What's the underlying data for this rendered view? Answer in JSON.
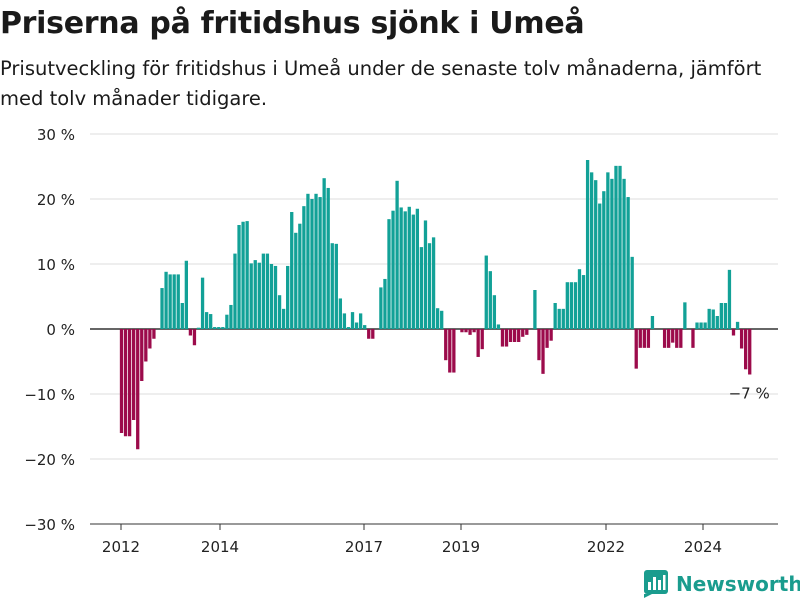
{
  "title": "Priserna på fritidshus sjönk i Umeå",
  "subtitle": "Prisutveckling för fritidshus i Umeå under de senaste tolv månaderna, jämfört med tolv månader tidigare.",
  "brand": {
    "name": "Newsworthy",
    "icon": "newsworthy-bar-chart-logo-icon"
  },
  "colors": {
    "positive": "#12a197",
    "negative": "#9c0b4b",
    "grid": "#dddddd",
    "zero_line": "#333333"
  },
  "chart_data": {
    "type": "bar",
    "grid": true,
    "ylim": [
      -30,
      30
    ],
    "y_ticks": [
      30,
      20,
      10,
      0,
      -10,
      -20,
      -30
    ],
    "y_tick_labels": [
      "30 %",
      "20 %",
      "10 %",
      "0 %",
      "−10 %",
      "−20 %",
      "−30 %"
    ],
    "x_tick_labels": [
      "2012",
      "2014",
      "2017",
      "2019",
      "2022",
      "2024"
    ],
    "x_start": "2011-10",
    "unit": "%",
    "annotation": {
      "label": "−7 %",
      "value": -7
    },
    "values": [
      -16,
      -16.5,
      -16.5,
      -14,
      -18.5,
      -8,
      -5,
      -3,
      -1.5,
      0,
      6.3,
      8.8,
      8.4,
      8.4,
      8.4,
      4,
      10.5,
      -1,
      -2.5,
      0.2,
      7.9,
      2.6,
      2.3,
      0.3,
      0.3,
      0.3,
      2.2,
      3.7,
      11.6,
      16,
      16.5,
      16.6,
      10.1,
      10.6,
      10.2,
      11.6,
      11.6,
      10,
      9.7,
      5.2,
      3.1,
      9.7,
      18,
      14.8,
      16.2,
      18.9,
      20.8,
      20,
      20.8,
      20.3,
      23.2,
      21.7,
      13.2,
      13.1,
      4.7,
      2.4,
      0.3,
      2.6,
      1,
      2.4,
      0.6,
      -1.5,
      -1.5,
      0,
      6.4,
      7.7,
      16.9,
      18.2,
      22.8,
      18.7,
      18.1,
      18.8,
      17.6,
      18.5,
      12.6,
      16.7,
      13.2,
      14.1,
      3.2,
      2.8,
      -4.8,
      -6.7,
      -6.7,
      0,
      -0.5,
      -0.5,
      -0.9,
      -0.5,
      -4.3,
      -3.1,
      11.3,
      8.9,
      5.2,
      0.7,
      -2.7,
      -2.7,
      -2,
      -2,
      -2,
      -1.2,
      -0.9,
      0,
      6,
      -4.8,
      -6.9,
      -2.9,
      -1.8,
      4,
      3.1,
      3.1,
      7.2,
      7.2,
      7.2,
      9.2,
      8.3,
      26,
      24.1,
      22.9,
      19.3,
      21.2,
      24.1,
      23.1,
      25.1,
      25.1,
      23.1,
      20.3,
      11.1,
      -6.1,
      -2.9,
      -2.9,
      -2.9,
      2,
      0,
      0,
      -2.9,
      -2.9,
      -2.1,
      -2.9,
      -2.9,
      4.1,
      0,
      -2.9,
      1,
      1,
      1,
      3.1,
      3,
      2,
      4,
      4,
      9.1,
      -1,
      1.1,
      -3,
      -6.2,
      -7
    ]
  }
}
